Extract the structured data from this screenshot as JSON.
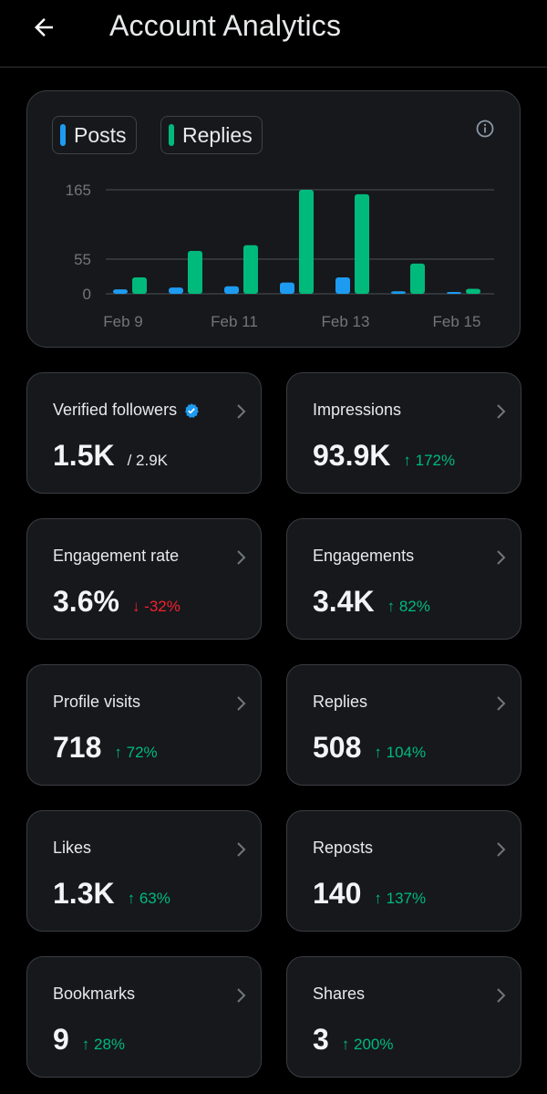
{
  "header": {
    "title": "Account Analytics"
  },
  "legend": [
    {
      "label": "Posts",
      "color": "#1d9bf0"
    },
    {
      "label": "Replies",
      "color": "#00ba7c"
    }
  ],
  "chart_data": {
    "type": "bar",
    "categories": [
      "Feb 9",
      "Feb 10",
      "Feb 11",
      "Feb 12",
      "Feb 13",
      "Feb 14",
      "Feb 15"
    ],
    "x_tick_labels": [
      "Feb 9",
      "Feb 11",
      "Feb 13",
      "Feb 15"
    ],
    "y_ticks": [
      "165",
      "55",
      "0"
    ],
    "series": [
      {
        "name": "Posts",
        "color": "#1d9bf0",
        "values": [
          7,
          10,
          12,
          18,
          26,
          4,
          1
        ]
      },
      {
        "name": "Replies",
        "color": "#00ba7c",
        "values": [
          26,
          68,
          77,
          165,
          158,
          48,
          8
        ]
      }
    ],
    "ylim": [
      0,
      165
    ],
    "grid": true
  },
  "stats": [
    {
      "label": "Verified followers",
      "value": "1.5K",
      "sub": "/ 2.9K",
      "change": "",
      "dir": ""
    },
    {
      "label": "Impressions",
      "value": "93.9K",
      "sub": "",
      "change": "↑ 172%",
      "dir": "up"
    },
    {
      "label": "Engagement rate",
      "value": "3.6%",
      "sub": "",
      "change": "↓ -32%",
      "dir": "down"
    },
    {
      "label": "Engagements",
      "value": "3.4K",
      "sub": "",
      "change": "↑ 82%",
      "dir": "up"
    },
    {
      "label": "Profile visits",
      "value": "718",
      "sub": "",
      "change": "↑ 72%",
      "dir": "up"
    },
    {
      "label": "Replies",
      "value": "508",
      "sub": "",
      "change": "↑ 104%",
      "dir": "up"
    },
    {
      "label": "Likes",
      "value": "1.3K",
      "sub": "",
      "change": "↑ 63%",
      "dir": "up"
    },
    {
      "label": "Reposts",
      "value": "140",
      "sub": "",
      "change": "↑ 137%",
      "dir": "up"
    },
    {
      "label": "Bookmarks",
      "value": "9",
      "sub": "",
      "change": "↑ 28%",
      "dir": "up"
    },
    {
      "label": "Shares",
      "value": "3",
      "sub": "",
      "change": "↑ 200%",
      "dir": "up"
    }
  ]
}
